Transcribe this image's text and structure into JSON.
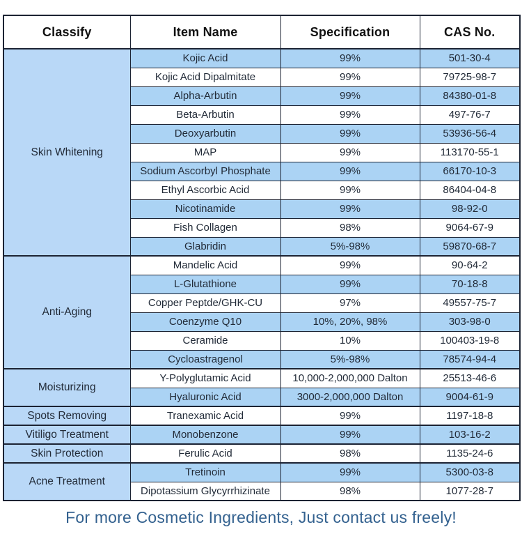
{
  "header": {
    "columns": [
      "Classify",
      "Item Name",
      "Specification",
      "CAS No."
    ]
  },
  "table": {
    "groups": [
      {
        "classify": "Skin Whitening",
        "items": [
          {
            "name": "Kojic Acid",
            "spec": "99%",
            "cas": "501-30-4"
          },
          {
            "name": "Kojic Acid Dipalmitate",
            "spec": "99%",
            "cas": "79725-98-7"
          },
          {
            "name": "Alpha-Arbutin",
            "spec": "99%",
            "cas": "84380-01-8"
          },
          {
            "name": "Beta-Arbutin",
            "spec": "99%",
            "cas": "497-76-7"
          },
          {
            "name": "Deoxyarbutin",
            "spec": "99%",
            "cas": "53936-56-4"
          },
          {
            "name": "MAP",
            "spec": "99%",
            "cas": "113170-55-1"
          },
          {
            "name": "Sodium Ascorbyl Phosphate",
            "spec": "99%",
            "cas": "66170-10-3"
          },
          {
            "name": "Ethyl Ascorbic Acid",
            "spec": "99%",
            "cas": "86404-04-8"
          },
          {
            "name": "Nicotinamide",
            "spec": "99%",
            "cas": "98-92-0"
          },
          {
            "name": "Fish Collagen",
            "spec": "98%",
            "cas": "9064-67-9"
          },
          {
            "name": "Glabridin",
            "spec": "5%-98%",
            "cas": "59870-68-7"
          }
        ]
      },
      {
        "classify": "Anti-Aging",
        "items": [
          {
            "name": "Mandelic Acid",
            "spec": "99%",
            "cas": "90-64-2"
          },
          {
            "name": "L-Glutathione",
            "spec": "99%",
            "cas": "70-18-8"
          },
          {
            "name": "Copper Peptde/GHK-CU",
            "spec": "97%",
            "cas": "49557-75-7"
          },
          {
            "name": "Coenzyme Q10",
            "spec": "10%, 20%, 98%",
            "cas": "303-98-0"
          },
          {
            "name": "Ceramide",
            "spec": "10%",
            "cas": "100403-19-8"
          },
          {
            "name": "Cycloastragenol",
            "spec": "5%-98%",
            "cas": "78574-94-4"
          }
        ]
      },
      {
        "classify": "Moisturizing",
        "items": [
          {
            "name": "Y-Polyglutamic Acid",
            "spec": "10,000-2,000,000 Dalton",
            "cas": "25513-46-6"
          },
          {
            "name": "Hyaluronic Acid",
            "spec": "3000-2,000,000 Dalton",
            "cas": "9004-61-9"
          }
        ]
      },
      {
        "classify": "Spots Removing",
        "items": [
          {
            "name": "Tranexamic Acid",
            "spec": "99%",
            "cas": "1197-18-8"
          }
        ]
      },
      {
        "classify": "Vitiligo Treatment",
        "items": [
          {
            "name": "Monobenzone",
            "spec": "99%",
            "cas": "103-16-2"
          }
        ]
      },
      {
        "classify": "Skin Protection",
        "items": [
          {
            "name": "Ferulic Acid",
            "spec": "98%",
            "cas": "1135-24-6"
          }
        ]
      },
      {
        "classify": "Acne Treatment",
        "items": [
          {
            "name": "Tretinoin",
            "spec": "99%",
            "cas": "5300-03-8"
          },
          {
            "name": "Dipotassium Glycyrrhizinate",
            "spec": "98%",
            "cas": "1077-28-7"
          }
        ]
      }
    ]
  },
  "footer": {
    "text": "For more Cosmetic Ingredients, Just contact us freely!"
  },
  "colors": {
    "row_blue": "#abd3f4",
    "classify_blue": "#b9d8f7",
    "border": "#1c2333",
    "cell_text": "#222b38",
    "footer_text": "#33618f"
  }
}
